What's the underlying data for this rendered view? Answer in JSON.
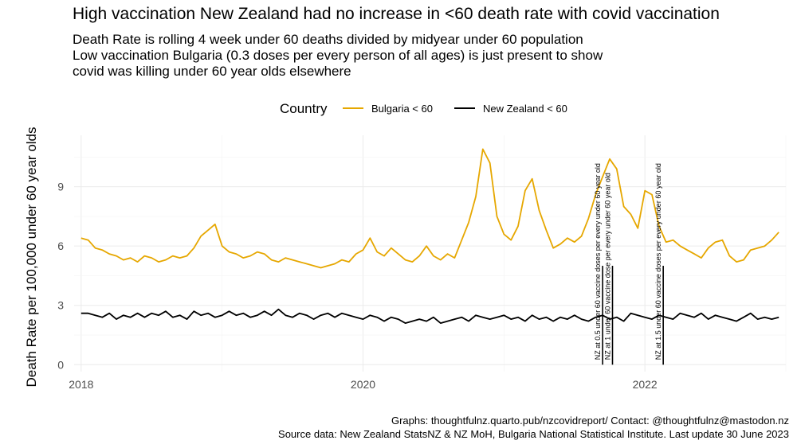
{
  "chart_data": {
    "type": "line",
    "title": "High vaccination New Zealand had no increase in <60 death rate with covid vaccination",
    "subtitle": [
      "Death Rate is rolling 4 week under 60 deaths divided by midyear under 60 population",
      "Low vaccination Bulgaria (0.3 doses per every person of all ages) is just present to show",
      "covid was killing under 60 year olds elsewhere"
    ],
    "xlabel": "",
    "ylabel": "Death Rate per 100,000 under 60 year olds",
    "xlim": [
      2017.95,
      2023.0
    ],
    "ylim": [
      -0.35,
      11.6
    ],
    "x_ticks": [
      2018,
      2020,
      2022
    ],
    "x_tick_labels": [
      "2018",
      "2020",
      "2022"
    ],
    "y_ticks": [
      0,
      3,
      6,
      9
    ],
    "y_tick_labels": [
      "0",
      "3",
      "6",
      "9"
    ],
    "legend": {
      "title": "Country",
      "position": "top",
      "entries": [
        "Bulgaria < 60",
        "New Zealand < 60"
      ]
    },
    "series": [
      {
        "name": "Bulgaria < 60",
        "color": "#E6A700",
        "x": [
          2018.0,
          2018.05,
          2018.1,
          2018.15,
          2018.2,
          2018.25,
          2018.3,
          2018.35,
          2018.4,
          2018.45,
          2018.5,
          2018.55,
          2018.6,
          2018.65,
          2018.7,
          2018.75,
          2018.8,
          2018.85,
          2018.9,
          2018.95,
          2019.0,
          2019.05,
          2019.1,
          2019.15,
          2019.2,
          2019.25,
          2019.3,
          2019.35,
          2019.4,
          2019.45,
          2019.5,
          2019.55,
          2019.6,
          2019.65,
          2019.7,
          2019.75,
          2019.8,
          2019.85,
          2019.9,
          2019.95,
          2020.0,
          2020.05,
          2020.1,
          2020.15,
          2020.2,
          2020.25,
          2020.3,
          2020.35,
          2020.4,
          2020.45,
          2020.5,
          2020.55,
          2020.6,
          2020.65,
          2020.7,
          2020.75,
          2020.8,
          2020.85,
          2020.9,
          2020.95,
          2021.0,
          2021.05,
          2021.1,
          2021.15,
          2021.2,
          2021.25,
          2021.3,
          2021.35,
          2021.4,
          2021.45,
          2021.5,
          2021.55,
          2021.6,
          2021.65,
          2021.7,
          2021.75,
          2021.8,
          2021.85,
          2021.9,
          2021.95,
          2022.0,
          2022.05,
          2022.1,
          2022.15,
          2022.2,
          2022.25,
          2022.3,
          2022.35,
          2022.4,
          2022.45,
          2022.5,
          2022.55,
          2022.6,
          2022.65,
          2022.7,
          2022.75,
          2022.8,
          2022.85,
          2022.9,
          2022.95
        ],
        "values": [
          6.4,
          6.3,
          5.9,
          5.8,
          5.6,
          5.5,
          5.3,
          5.4,
          5.2,
          5.5,
          5.4,
          5.2,
          5.3,
          5.5,
          5.4,
          5.5,
          5.9,
          6.5,
          6.8,
          7.1,
          6.0,
          5.7,
          5.6,
          5.4,
          5.5,
          5.7,
          5.6,
          5.3,
          5.2,
          5.4,
          5.3,
          5.2,
          5.1,
          5.0,
          4.9,
          5.0,
          5.1,
          5.3,
          5.2,
          5.6,
          5.8,
          6.4,
          5.7,
          5.5,
          5.9,
          5.6,
          5.3,
          5.2,
          5.5,
          6.0,
          5.5,
          5.3,
          5.6,
          5.4,
          6.3,
          7.2,
          8.5,
          10.9,
          10.2,
          7.5,
          6.6,
          6.3,
          7.0,
          8.8,
          9.4,
          7.8,
          6.8,
          5.9,
          6.1,
          6.4,
          6.2,
          6.5,
          7.4,
          8.6,
          9.5,
          10.4,
          9.9,
          8.0,
          7.6,
          6.9,
          8.8,
          8.6,
          7.0,
          6.2,
          6.3,
          6.0,
          5.8,
          5.6,
          5.4,
          5.9,
          6.2,
          6.3,
          5.5,
          5.2,
          5.3,
          5.8,
          5.9,
          6.0,
          6.3,
          6.7
        ]
      },
      {
        "name": "New Zealand < 60",
        "color": "#000000",
        "x": [
          2018.0,
          2018.05,
          2018.1,
          2018.15,
          2018.2,
          2018.25,
          2018.3,
          2018.35,
          2018.4,
          2018.45,
          2018.5,
          2018.55,
          2018.6,
          2018.65,
          2018.7,
          2018.75,
          2018.8,
          2018.85,
          2018.9,
          2018.95,
          2019.0,
          2019.05,
          2019.1,
          2019.15,
          2019.2,
          2019.25,
          2019.3,
          2019.35,
          2019.4,
          2019.45,
          2019.5,
          2019.55,
          2019.6,
          2019.65,
          2019.7,
          2019.75,
          2019.8,
          2019.85,
          2019.9,
          2019.95,
          2020.0,
          2020.05,
          2020.1,
          2020.15,
          2020.2,
          2020.25,
          2020.3,
          2020.35,
          2020.4,
          2020.45,
          2020.5,
          2020.55,
          2020.6,
          2020.65,
          2020.7,
          2020.75,
          2020.8,
          2020.85,
          2020.9,
          2020.95,
          2021.0,
          2021.05,
          2021.1,
          2021.15,
          2021.2,
          2021.25,
          2021.3,
          2021.35,
          2021.4,
          2021.45,
          2021.5,
          2021.55,
          2021.6,
          2021.65,
          2021.7,
          2021.75,
          2021.8,
          2021.85,
          2021.9,
          2021.95,
          2022.0,
          2022.05,
          2022.1,
          2022.15,
          2022.2,
          2022.25,
          2022.3,
          2022.35,
          2022.4,
          2022.45,
          2022.5,
          2022.55,
          2022.6,
          2022.65,
          2022.7,
          2022.75,
          2022.8,
          2022.85,
          2022.9,
          2022.95
        ],
        "values": [
          2.6,
          2.6,
          2.5,
          2.4,
          2.6,
          2.3,
          2.5,
          2.4,
          2.6,
          2.4,
          2.6,
          2.5,
          2.7,
          2.4,
          2.5,
          2.3,
          2.7,
          2.5,
          2.6,
          2.4,
          2.5,
          2.7,
          2.5,
          2.6,
          2.4,
          2.5,
          2.7,
          2.5,
          2.8,
          2.5,
          2.4,
          2.6,
          2.5,
          2.3,
          2.5,
          2.6,
          2.4,
          2.6,
          2.5,
          2.4,
          2.3,
          2.5,
          2.4,
          2.2,
          2.4,
          2.3,
          2.1,
          2.2,
          2.3,
          2.2,
          2.4,
          2.1,
          2.2,
          2.3,
          2.4,
          2.2,
          2.5,
          2.4,
          2.3,
          2.4,
          2.5,
          2.3,
          2.4,
          2.2,
          2.5,
          2.3,
          2.4,
          2.2,
          2.4,
          2.3,
          2.5,
          2.3,
          2.2,
          2.4,
          2.5,
          2.3,
          2.4,
          2.2,
          2.6,
          2.5,
          2.4,
          2.3,
          2.5,
          2.4,
          2.3,
          2.6,
          2.5,
          2.4,
          2.6,
          2.3,
          2.5,
          2.4,
          2.3,
          2.2,
          2.4,
          2.6,
          2.3,
          2.4,
          2.3,
          2.4
        ]
      }
    ],
    "annotations": [
      {
        "x": 2021.7,
        "text": "NZ at 0.5 under 60 vaccine doses per every under 60 year old"
      },
      {
        "x": 2021.77,
        "text": "NZ at 1 under 60 vaccine dose per every under 60 year old"
      },
      {
        "x": 2022.13,
        "text": "NZ at 1.5 under 60 vaccine doses per every under 60 year old"
      }
    ],
    "annotation_line_range": [
      0.0,
      5.0
    ]
  },
  "caption": [
    "Graphs: thoughtfulnz.quarto.pub/nzcovidreport/ Contact: @thoughtfulnz@mastodon.nz",
    "Source data: New Zealand StatsNZ & NZ MoH, Bulgaria National Statistical Institute. Last update 30 June 2023"
  ]
}
